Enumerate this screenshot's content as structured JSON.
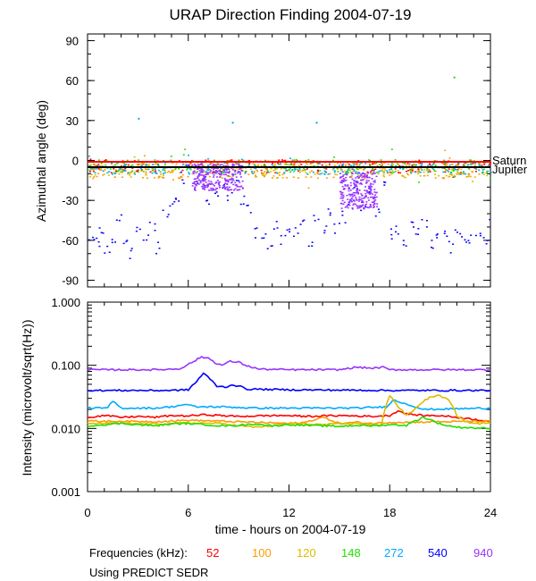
{
  "chart_data": [
    {
      "type": "scatter",
      "title": "URAP Direction Finding  2004-07-19",
      "ylabel": "Azimuthal angle (deg)",
      "xlim": [
        0,
        24
      ],
      "ylim": [
        -95,
        95
      ],
      "x_ticks": [
        0,
        6,
        12,
        18,
        24
      ],
      "y_ticks": [
        90,
        60,
        30,
        0,
        -30,
        -60,
        -90
      ],
      "y_tick_labels": [
        "90",
        "60",
        "30",
        "0",
        "-30",
        "-60",
        "-90"
      ],
      "reference_lines": [
        {
          "name": "Saturn",
          "y": -1,
          "color": "#ff0000"
        },
        {
          "name": "Jupiter",
          "y": -5,
          "color": "#000000"
        }
      ],
      "series": [
        {
          "name": "52",
          "color": "#ff0000",
          "pattern": "band",
          "center": -4,
          "spread": 5
        },
        {
          "name": "100",
          "color": "#ff9900",
          "pattern": "band",
          "center": -7,
          "spread": 6
        },
        {
          "name": "120",
          "color": "#ddbb00",
          "pattern": "band",
          "center": -6,
          "spread": 6
        },
        {
          "name": "148",
          "color": "#22dd00",
          "pattern": "band",
          "center": -4,
          "spread": 5
        },
        {
          "name": "272",
          "color": "#00aaff",
          "pattern": "band",
          "center": -5,
          "spread": 5
        },
        {
          "name": "540",
          "color": "#0000ff",
          "pattern": "scatter_low",
          "points": [
            [
              0.2,
              -55
            ],
            [
              0.5,
              -62
            ],
            [
              0.8,
              -50
            ],
            [
              1.1,
              -68
            ],
            [
              1.5,
              -58
            ],
            [
              1.8,
              -45
            ],
            [
              2.2,
              -63
            ],
            [
              2.6,
              -70
            ],
            [
              3.0,
              -52
            ],
            [
              3.4,
              -60
            ],
            [
              3.8,
              -48
            ],
            [
              4.2,
              -66
            ],
            [
              4.6,
              -40
            ],
            [
              5.0,
              -30
            ],
            [
              5.3,
              -25
            ],
            [
              5.6,
              -12
            ],
            [
              6.0,
              -8
            ],
            [
              6.4,
              -20
            ],
            [
              6.8,
              -15
            ],
            [
              7.2,
              -30
            ],
            [
              7.6,
              -22
            ],
            [
              8.0,
              -18
            ],
            [
              8.4,
              -25
            ],
            [
              8.8,
              -12
            ],
            [
              9.2,
              -28
            ],
            [
              9.6,
              -35
            ],
            [
              10.0,
              -55
            ],
            [
              10.4,
              -58
            ],
            [
              10.8,
              -62
            ],
            [
              11.2,
              -50
            ],
            [
              11.6,
              -60
            ],
            [
              12.0,
              -55
            ],
            [
              12.4,
              -52
            ],
            [
              12.8,
              -48
            ],
            [
              13.2,
              -60
            ],
            [
              13.6,
              -45
            ],
            [
              14.0,
              -52
            ],
            [
              14.4,
              -38
            ],
            [
              14.8,
              -50
            ],
            [
              15.2,
              -42
            ],
            [
              15.6,
              -30
            ],
            [
              16.0,
              -20
            ],
            [
              16.4,
              -35
            ],
            [
              16.8,
              -25
            ],
            [
              17.2,
              -40
            ],
            [
              17.6,
              -18
            ],
            [
              18.0,
              -55
            ],
            [
              18.4,
              -50
            ],
            [
              18.8,
              -60
            ],
            [
              19.2,
              -45
            ],
            [
              19.6,
              -55
            ],
            [
              20.0,
              -48
            ],
            [
              20.4,
              -62
            ],
            [
              20.8,
              -58
            ],
            [
              21.2,
              -52
            ],
            [
              21.6,
              -65
            ],
            [
              22.0,
              -50
            ],
            [
              22.4,
              -56
            ],
            [
              22.8,
              -60
            ],
            [
              23.2,
              -53
            ],
            [
              23.6,
              -58
            ],
            [
              24.0,
              -42
            ]
          ]
        },
        {
          "name": "940",
          "color": "#9933ff",
          "pattern": "clusters",
          "clusters": [
            [
              6.2,
              9.2,
              -12,
              10
            ],
            [
              15.0,
              17.2,
              -22,
              14
            ]
          ]
        }
      ],
      "annotations": [
        {
          "x": 21.8,
          "y": 63,
          "color": "#22dd00"
        },
        {
          "x": 3.0,
          "y": 32,
          "color": "#00aaff"
        },
        {
          "x": 8.6,
          "y": 29,
          "color": "#00aaff"
        },
        {
          "x": 13.6,
          "y": 29,
          "color": "#00aaff"
        }
      ]
    },
    {
      "type": "line",
      "ylabel": "Intensity (microvolt/sqrt(Hz))",
      "yscale": "log",
      "xlabel": "time - hours on 2004-07-19",
      "xlim": [
        0,
        24
      ],
      "ylim": [
        0.001,
        1.0
      ],
      "x_ticks": [
        0,
        6,
        12,
        18,
        24
      ],
      "x_tick_labels": [
        "0",
        "6",
        "12",
        "18",
        "24"
      ],
      "y_ticks": [
        1.0,
        0.1,
        0.01,
        0.001
      ],
      "y_tick_labels": [
        "1.000",
        "0.100",
        "0.010",
        "0.001"
      ],
      "series": [
        {
          "name": "940",
          "color": "#9933ff",
          "x": [
            0,
            4,
            5.5,
            6.2,
            6.8,
            7.2,
            7.6,
            8.0,
            8.5,
            9.0,
            9.5,
            10.2,
            12,
            15,
            16,
            17,
            17.6,
            18,
            24
          ],
          "y": [
            0.085,
            0.085,
            0.088,
            0.11,
            0.135,
            0.13,
            0.11,
            0.1,
            0.115,
            0.112,
            0.098,
            0.087,
            0.085,
            0.085,
            0.093,
            0.09,
            0.093,
            0.085,
            0.085
          ]
        },
        {
          "name": "540",
          "color": "#0000ff",
          "x": [
            0,
            5,
            6,
            6.5,
            6.9,
            7.3,
            7.7,
            8.2,
            8.6,
            9.0,
            9.5,
            12,
            18,
            24
          ],
          "y": [
            0.04,
            0.04,
            0.041,
            0.055,
            0.075,
            0.06,
            0.047,
            0.045,
            0.049,
            0.047,
            0.042,
            0.041,
            0.04,
            0.04
          ]
        },
        {
          "name": "272",
          "color": "#00aaff",
          "x": [
            0,
            1.2,
            1.5,
            2,
            4,
            5,
            5.8,
            6.5,
            8,
            10,
            12,
            16,
            17.8,
            18.2,
            20,
            24
          ],
          "y": [
            0.021,
            0.021,
            0.027,
            0.021,
            0.021,
            0.022,
            0.024,
            0.022,
            0.022,
            0.021,
            0.021,
            0.021,
            0.022,
            0.028,
            0.02,
            0.021
          ]
        },
        {
          "name": "52",
          "color": "#ff0000",
          "x": [
            0,
            1,
            2,
            3,
            4,
            5,
            6,
            7,
            8,
            9,
            10,
            11,
            12,
            13,
            14,
            15,
            16,
            17,
            18,
            18.5,
            19,
            20,
            21,
            22,
            23,
            24
          ],
          "y": [
            0.015,
            0.016,
            0.015,
            0.0155,
            0.015,
            0.016,
            0.0158,
            0.0165,
            0.016,
            0.0155,
            0.0158,
            0.016,
            0.016,
            0.0155,
            0.0158,
            0.016,
            0.0158,
            0.0155,
            0.016,
            0.019,
            0.017,
            0.016,
            0.016,
            0.015,
            0.014,
            0.013
          ]
        },
        {
          "name": "100",
          "color": "#ff9900",
          "x": [
            0,
            2,
            4,
            6,
            8,
            10,
            12,
            13,
            14,
            15,
            16,
            17,
            18,
            24
          ],
          "y": [
            0.013,
            0.013,
            0.0128,
            0.0135,
            0.013,
            0.0125,
            0.012,
            0.0125,
            0.015,
            0.012,
            0.0125,
            0.012,
            0.0125,
            0.013
          ]
        },
        {
          "name": "120",
          "color": "#ddbb00",
          "x": [
            0,
            2,
            4,
            6,
            8,
            9,
            10,
            11,
            12,
            14,
            16,
            17.5,
            18,
            18.5,
            19,
            19.5,
            20,
            20.5,
            21,
            21.5,
            22,
            22.5,
            23,
            24
          ],
          "y": [
            0.012,
            0.012,
            0.0118,
            0.0122,
            0.012,
            0.011,
            0.0105,
            0.011,
            0.012,
            0.0115,
            0.012,
            0.011,
            0.033,
            0.022,
            0.016,
            0.02,
            0.027,
            0.032,
            0.033,
            0.028,
            0.016,
            0.013,
            0.012,
            0.012
          ]
        },
        {
          "name": "148",
          "color": "#22dd00",
          "x": [
            0,
            1,
            2,
            3,
            4,
            5,
            6,
            7,
            8,
            9,
            10,
            11,
            12,
            13,
            14,
            15,
            16,
            17,
            18,
            19,
            20,
            20.5,
            21,
            21.5,
            22,
            23,
            24
          ],
          "y": [
            0.011,
            0.0115,
            0.012,
            0.0115,
            0.011,
            0.0118,
            0.012,
            0.0115,
            0.011,
            0.0112,
            0.0118,
            0.011,
            0.0115,
            0.0112,
            0.011,
            0.0108,
            0.0112,
            0.011,
            0.0115,
            0.0112,
            0.015,
            0.0135,
            0.0118,
            0.011,
            0.0105,
            0.0102,
            0.01
          ]
        }
      ]
    }
  ],
  "labels": {
    "saturn": "Saturn",
    "jupiter": "Jupiter",
    "frequencies_prefix": "Frequencies (kHz):",
    "source_note": "Using PREDICT SEDR"
  },
  "legend": [
    {
      "label": "52",
      "color": "#ff0000"
    },
    {
      "label": "100",
      "color": "#ff9900"
    },
    {
      "label": "120",
      "color": "#ddbb00"
    },
    {
      "label": "148",
      "color": "#22dd00"
    },
    {
      "label": "272",
      "color": "#00aaff"
    },
    {
      "label": "540",
      "color": "#0000ff"
    },
    {
      "label": "940",
      "color": "#9933ff"
    }
  ]
}
